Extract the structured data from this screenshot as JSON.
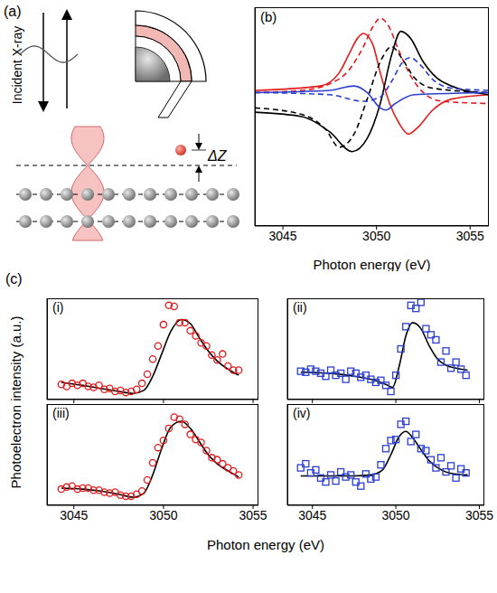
{
  "diagram": {
    "label": "(a)",
    "beam_label": "Incident X-ray",
    "height_label": "ΔZ"
  },
  "panel_c": {
    "label": "(c)",
    "x_label": "Photon energy (eV)",
    "y_label": "Photoelectron intensity (a.u.)"
  },
  "chart_data": [
    {
      "type": "line",
      "title": "(b)",
      "x_label": "Photon energy (eV)",
      "xlim": [
        3043.5,
        3056
      ],
      "xticks": [
        3045,
        3050,
        3055
      ],
      "ylim": [
        0,
        10
      ],
      "tick_labels": "x",
      "series": [
        {
          "color": "#e41a1c",
          "line_style": "solid",
          "x": [
            3043.5,
            3047,
            3048,
            3048.5,
            3049,
            3049.3,
            3049.8,
            3050.2,
            3050.7,
            3051.2,
            3051.7,
            3052.2,
            3053,
            3054,
            3056
          ],
          "values": [
            6.2,
            6.4,
            7.0,
            7.8,
            8.6,
            8.8,
            8.3,
            7.0,
            5.6,
            4.7,
            4.2,
            4.5,
            5.3,
            5.8,
            6.0
          ]
        },
        {
          "color": "#e41a1c",
          "line_style": "dashed",
          "x": [
            3043.5,
            3046,
            3047.5,
            3048.5,
            3049.3,
            3049.8,
            3050.2,
            3050.6,
            3051.2,
            3051.8,
            3052.5,
            3053.5,
            3056
          ],
          "values": [
            6.1,
            6.2,
            6.5,
            7.1,
            8.2,
            9.1,
            9.5,
            9.2,
            8.0,
            6.9,
            6.1,
            5.7,
            5.6
          ]
        },
        {
          "color": "#000000",
          "line_style": "solid",
          "x": [
            3043.5,
            3046,
            3047.5,
            3048.7,
            3049.5,
            3050.2,
            3050.8,
            3051.3,
            3051.8,
            3052.5,
            3053.5,
            3056
          ],
          "values": [
            5.2,
            5.0,
            4.3,
            3.4,
            4.0,
            5.6,
            7.8,
            8.9,
            8.6,
            7.5,
            6.6,
            6.0
          ]
        },
        {
          "color": "#000000",
          "line_style": "dashed",
          "x": [
            3043.5,
            3046,
            3047.3,
            3048,
            3048.8,
            3049.5,
            3050.2,
            3050.8,
            3051.4,
            3052,
            3053,
            3056
          ],
          "values": [
            5.4,
            5.1,
            4.4,
            3.6,
            4.2,
            5.8,
            7.5,
            8.2,
            7.6,
            6.8,
            6.3,
            6.1
          ]
        },
        {
          "color": "#2b3fd1",
          "line_style": "solid",
          "x": [
            3043.5,
            3047.5,
            3048.8,
            3049.5,
            3050.2,
            3050.5,
            3051,
            3052,
            3056
          ],
          "values": [
            6.1,
            6.2,
            6.4,
            6.1,
            5.4,
            5.3,
            5.6,
            6.0,
            6.1
          ]
        },
        {
          "color": "#2b3fd1",
          "line_style": "dashed",
          "x": [
            3043.5,
            3047.5,
            3049.3,
            3050.2,
            3050.8,
            3051.4,
            3051.8,
            3052.3,
            3053,
            3054,
            3056
          ],
          "values": [
            6.1,
            6.0,
            5.7,
            5.9,
            6.6,
            7.5,
            7.7,
            7.4,
            6.7,
            6.3,
            6.2
          ]
        }
      ]
    },
    {
      "type": "scatter",
      "title": "(i)",
      "xlim": [
        3043.5,
        3055.3
      ],
      "xticks": [
        3045,
        3050,
        3055
      ],
      "ylim": [
        0,
        10
      ],
      "tick_labels": false,
      "series": [
        {
          "type": "scatter",
          "marker": "circle",
          "color": "#e41a1c",
          "x": [
            3044.3,
            3044.6,
            3044.9,
            3045.2,
            3045.5,
            3045.8,
            3046.1,
            3046.4,
            3046.7,
            3047.0,
            3047.3,
            3047.6,
            3047.9,
            3048.2,
            3048.5,
            3048.8,
            3049.1,
            3049.4,
            3049.7,
            3050.0,
            3050.3,
            3050.6,
            3050.9,
            3051.2,
            3051.5,
            3051.8,
            3052.1,
            3052.4,
            3052.7,
            3053.0,
            3053.3,
            3053.6,
            3053.9,
            3054.2
          ],
          "values": [
            1.5,
            1.3,
            1.6,
            1.4,
            1.6,
            1.3,
            1.2,
            1.4,
            1.0,
            1.1,
            0.8,
            0.9,
            0.7,
            0.8,
            1.0,
            1.6,
            2.5,
            4.0,
            5.3,
            7.4,
            9.3,
            9.2,
            7.6,
            7.6,
            6.8,
            6.3,
            5.6,
            5.3,
            4.4,
            3.9,
            4.5,
            3.3,
            2.9,
            2.9
          ]
        },
        {
          "type": "line",
          "color": "#000000",
          "line_style": "solid",
          "x": [
            3044.3,
            3045.5,
            3046.5,
            3047.5,
            3048.3,
            3048.9,
            3049.4,
            3049.9,
            3050.4,
            3051,
            3051.5,
            3052,
            3052.5,
            3053,
            3053.6,
            3054.2
          ],
          "values": [
            1.7,
            1.4,
            1.1,
            0.8,
            0.6,
            0.9,
            2.3,
            4.5,
            6.7,
            7.9,
            7.5,
            6.1,
            4.8,
            3.8,
            3.0,
            2.4
          ]
        }
      ]
    },
    {
      "type": "scatter",
      "title": "(ii)",
      "xlim": [
        3043.5,
        3055.3
      ],
      "xticks": [
        3045,
        3050,
        3055
      ],
      "ylim": [
        0,
        10
      ],
      "tick_labels": false,
      "series": [
        {
          "type": "scatter",
          "marker": "square",
          "color": "#2b3fd1",
          "x": [
            3044.3,
            3044.6,
            3044.9,
            3045.2,
            3045.5,
            3045.8,
            3046.1,
            3046.4,
            3046.7,
            3047.0,
            3047.3,
            3047.6,
            3047.9,
            3048.2,
            3048.5,
            3048.8,
            3049.1,
            3049.4,
            3049.7,
            3050.0,
            3050.3,
            3050.6,
            3050.9,
            3051.2,
            3051.5,
            3051.8,
            3052.1,
            3052.4,
            3052.7,
            3053.0,
            3053.3,
            3053.6,
            3053.9,
            3054.2
          ],
          "values": [
            2.8,
            2.7,
            3.0,
            2.8,
            2.6,
            2.3,
            2.9,
            2.4,
            2.6,
            2.0,
            2.8,
            2.6,
            2.2,
            2.4,
            2.0,
            1.7,
            1.9,
            1.4,
            0.8,
            2.4,
            5.0,
            7.2,
            9.3,
            9.0,
            9.6,
            7.0,
            6.4,
            5.9,
            3.7,
            4.8,
            3.1,
            3.7,
            3.0,
            2.4
          ]
        },
        {
          "type": "line",
          "color": "#000000",
          "line_style": "solid",
          "x": [
            3044.3,
            3046,
            3047.5,
            3048.5,
            3049.4,
            3049.8,
            3050.2,
            3050.6,
            3051,
            3051.5,
            3052,
            3052.5,
            3053,
            3053.6,
            3054.3
          ],
          "values": [
            2.7,
            2.6,
            2.3,
            2.0,
            1.5,
            1.2,
            3.3,
            6.3,
            7.6,
            7.0,
            5.3,
            4.0,
            3.4,
            3.1,
            2.9
          ]
        }
      ]
    },
    {
      "type": "scatter",
      "title": "(iii)",
      "xlim": [
        3043.5,
        3055.3
      ],
      "xticks": [
        3045,
        3050,
        3055
      ],
      "ylim": [
        0,
        10
      ],
      "tick_labels": "x",
      "series": [
        {
          "type": "scatter",
          "marker": "circle",
          "color": "#e41a1c",
          "x": [
            3044.3,
            3044.6,
            3044.9,
            3045.2,
            3045.5,
            3045.8,
            3046.1,
            3046.4,
            3046.7,
            3047.0,
            3047.3,
            3047.6,
            3047.9,
            3048.2,
            3048.5,
            3048.8,
            3049.1,
            3049.4,
            3049.7,
            3050.0,
            3050.3,
            3050.6,
            3050.9,
            3051.2,
            3051.5,
            3051.8,
            3052.1,
            3052.4,
            3052.7,
            3053.0,
            3053.3,
            3053.6,
            3053.9,
            3054.2
          ],
          "values": [
            1.6,
            1.8,
            1.9,
            1.6,
            1.7,
            1.7,
            1.5,
            1.5,
            1.3,
            1.2,
            1.3,
            1.0,
            0.9,
            0.9,
            1.1,
            1.4,
            2.5,
            4.2,
            5.7,
            6.4,
            7.6,
            8.7,
            8.5,
            8.0,
            7.0,
            6.5,
            6.2,
            5.4,
            4.7,
            4.5,
            4.1,
            3.7,
            3.4,
            3.0
          ]
        },
        {
          "type": "line",
          "color": "#000000",
          "line_style": "solid",
          "x": [
            3044.3,
            3045.5,
            3046.5,
            3047.5,
            3048.3,
            3048.9,
            3049.4,
            3049.9,
            3050.4,
            3051,
            3051.5,
            3052,
            3052.5,
            3053,
            3053.6,
            3054.2
          ],
          "values": [
            1.7,
            1.6,
            1.4,
            1.1,
            0.8,
            1.2,
            3.0,
            5.6,
            7.7,
            8.3,
            7.6,
            6.3,
            5.0,
            4.1,
            3.4,
            2.8
          ]
        }
      ]
    },
    {
      "type": "scatter",
      "title": "(iv)",
      "xlim": [
        3043.5,
        3055.3
      ],
      "xticks": [
        3045,
        3050,
        3055
      ],
      "ylim": [
        0,
        10
      ],
      "tick_labels": "x",
      "series": [
        {
          "type": "scatter",
          "marker": "square",
          "color": "#2b3fd1",
          "x": [
            3044.3,
            3044.6,
            3044.9,
            3045.2,
            3045.5,
            3045.8,
            3046.1,
            3046.4,
            3046.7,
            3047.0,
            3047.3,
            3047.6,
            3047.9,
            3048.2,
            3048.5,
            3048.8,
            3049.1,
            3049.4,
            3049.7,
            3050.0,
            3050.3,
            3050.6,
            3050.9,
            3051.2,
            3051.5,
            3051.8,
            3052.1,
            3052.4,
            3052.7,
            3053.0,
            3053.3,
            3053.6,
            3053.9,
            3054.2
          ],
          "values": [
            3.7,
            4.1,
            3.2,
            3.5,
            2.7,
            2.3,
            3.0,
            2.4,
            3.3,
            2.8,
            3.0,
            2.3,
            1.9,
            3.1,
            2.6,
            2.8,
            4.0,
            5.6,
            6.4,
            6.5,
            8.0,
            8.3,
            6.3,
            7.0,
            5.6,
            5.4,
            4.5,
            3.7,
            4.7,
            3.3,
            3.9,
            2.7,
            3.6,
            3.2
          ]
        },
        {
          "type": "line",
          "color": "#000000",
          "line_style": "solid",
          "x": [
            3044.3,
            3046,
            3047.5,
            3048.5,
            3049.2,
            3049.7,
            3050.2,
            3050.6,
            3051,
            3051.5,
            3052,
            3052.6,
            3053.2,
            3054.3
          ],
          "values": [
            2.9,
            2.9,
            2.9,
            3.0,
            3.5,
            5.0,
            6.8,
            7.3,
            6.7,
            5.5,
            4.4,
            3.6,
            3.2,
            3.0
          ]
        }
      ]
    }
  ]
}
